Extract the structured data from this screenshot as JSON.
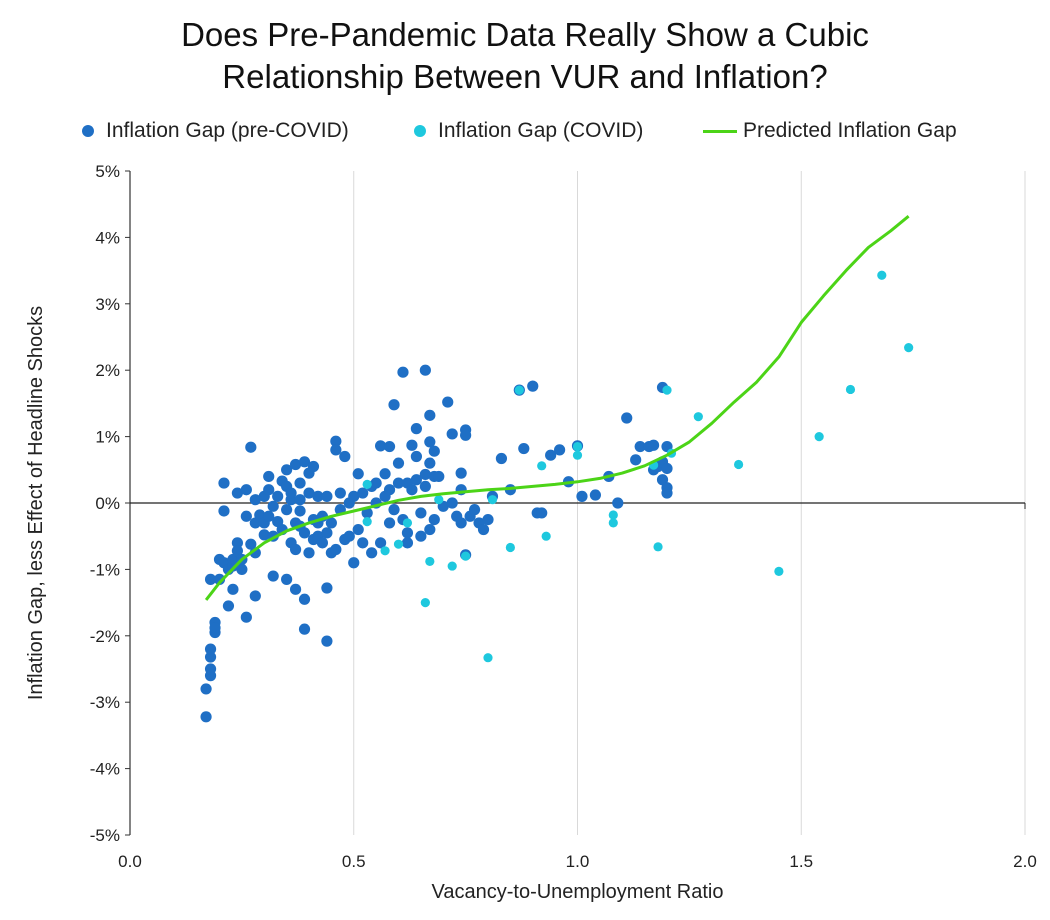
{
  "chart_data": {
    "type": "scatter",
    "title_line1": "Does Pre-Pandemic Data Really Show a Cubic",
    "title_line2": "Relationship Between VUR and Inflation?",
    "xlabel": "Vacancy-to-Unemployment Ratio",
    "ylabel": "Inflation Gap, less Effect of Headline Shocks",
    "xlim": [
      0.0,
      2.0
    ],
    "ylim": [
      -5,
      5
    ],
    "x_ticks": [
      "0.0",
      "0.5",
      "1.0",
      "1.5",
      "2.0"
    ],
    "y_ticks": [
      "5%",
      "4%",
      "3%",
      "2%",
      "1%",
      "0%",
      "-1%",
      "-2%",
      "-3%",
      "-4%",
      "-5%"
    ],
    "legend_position": "top",
    "colors": {
      "pre": "#1f6fc5",
      "covid": "#1ec8de",
      "predicted": "#4cd417"
    },
    "series": [
      {
        "name": "Inflation Gap (pre-COVID)",
        "kind": "scatter",
        "points": [
          [
            0.17,
            -3.22
          ],
          [
            0.17,
            -2.8
          ],
          [
            0.18,
            -2.6
          ],
          [
            0.18,
            -2.5
          ],
          [
            0.18,
            -2.32
          ],
          [
            0.18,
            -2.2
          ],
          [
            0.18,
            -1.15
          ],
          [
            0.19,
            -1.8
          ],
          [
            0.19,
            -1.95
          ],
          [
            0.19,
            -1.88
          ],
          [
            0.2,
            -1.15
          ],
          [
            0.2,
            -0.85
          ],
          [
            0.21,
            -0.9
          ],
          [
            0.21,
            -0.12
          ],
          [
            0.21,
            0.3
          ],
          [
            0.22,
            -1.55
          ],
          [
            0.22,
            -1.0
          ],
          [
            0.23,
            -0.95
          ],
          [
            0.23,
            -0.85
          ],
          [
            0.23,
            -1.3
          ],
          [
            0.24,
            -0.6
          ],
          [
            0.24,
            0.15
          ],
          [
            0.24,
            -0.72
          ],
          [
            0.25,
            -1.0
          ],
          [
            0.25,
            -0.85
          ],
          [
            0.26,
            -1.72
          ],
          [
            0.26,
            -0.2
          ],
          [
            0.26,
            0.2
          ],
          [
            0.27,
            0.84
          ],
          [
            0.27,
            -0.62
          ],
          [
            0.28,
            -1.4
          ],
          [
            0.28,
            -0.75
          ],
          [
            0.28,
            -0.3
          ],
          [
            0.28,
            0.05
          ],
          [
            0.29,
            -0.18
          ],
          [
            0.3,
            -0.48
          ],
          [
            0.3,
            0.1
          ],
          [
            0.3,
            -0.3
          ],
          [
            0.31,
            0.4
          ],
          [
            0.31,
            -0.2
          ],
          [
            0.31,
            0.2
          ],
          [
            0.32,
            -1.1
          ],
          [
            0.32,
            -0.5
          ],
          [
            0.32,
            -0.05
          ],
          [
            0.33,
            0.1
          ],
          [
            0.33,
            -0.28
          ],
          [
            0.34,
            -0.4
          ],
          [
            0.34,
            0.33
          ],
          [
            0.35,
            -1.15
          ],
          [
            0.35,
            -0.1
          ],
          [
            0.35,
            0.5
          ],
          [
            0.35,
            0.25
          ],
          [
            0.36,
            -0.6
          ],
          [
            0.36,
            0.05
          ],
          [
            0.36,
            0.15
          ],
          [
            0.37,
            -1.3
          ],
          [
            0.37,
            -0.3
          ],
          [
            0.37,
            -0.7
          ],
          [
            0.37,
            0.58
          ],
          [
            0.38,
            -0.35
          ],
          [
            0.38,
            0.05
          ],
          [
            0.38,
            -0.12
          ],
          [
            0.38,
            0.3
          ],
          [
            0.39,
            -1.45
          ],
          [
            0.39,
            -1.9
          ],
          [
            0.39,
            0.62
          ],
          [
            0.39,
            -0.45
          ],
          [
            0.4,
            0.15
          ],
          [
            0.4,
            -0.75
          ],
          [
            0.4,
            0.45
          ],
          [
            0.41,
            -0.55
          ],
          [
            0.41,
            -0.25
          ],
          [
            0.41,
            0.55
          ],
          [
            0.42,
            -0.5
          ],
          [
            0.42,
            -0.3
          ],
          [
            0.42,
            0.1
          ],
          [
            0.43,
            -0.2
          ],
          [
            0.43,
            -0.6
          ],
          [
            0.44,
            -2.08
          ],
          [
            0.44,
            -1.28
          ],
          [
            0.44,
            -0.45
          ],
          [
            0.44,
            0.1
          ],
          [
            0.45,
            -0.75
          ],
          [
            0.45,
            -0.3
          ],
          [
            0.46,
            0.93
          ],
          [
            0.46,
            0.8
          ],
          [
            0.46,
            -0.7
          ],
          [
            0.47,
            -0.1
          ],
          [
            0.47,
            0.15
          ],
          [
            0.48,
            -0.55
          ],
          [
            0.48,
            0.7
          ],
          [
            0.49,
            -0.5
          ],
          [
            0.49,
            0.0
          ],
          [
            0.5,
            -0.9
          ],
          [
            0.5,
            0.1
          ],
          [
            0.51,
            0.44
          ],
          [
            0.51,
            -0.4
          ],
          [
            0.52,
            0.15
          ],
          [
            0.52,
            -0.6
          ],
          [
            0.53,
            -0.15
          ],
          [
            0.54,
            0.25
          ],
          [
            0.54,
            -0.75
          ],
          [
            0.55,
            0.0
          ],
          [
            0.55,
            0.3
          ],
          [
            0.56,
            0.86
          ],
          [
            0.56,
            -0.6
          ],
          [
            0.57,
            0.44
          ],
          [
            0.57,
            0.1
          ],
          [
            0.58,
            0.85
          ],
          [
            0.58,
            -0.3
          ],
          [
            0.58,
            0.2
          ],
          [
            0.59,
            1.48
          ],
          [
            0.59,
            -0.1
          ],
          [
            0.6,
            0.6
          ],
          [
            0.6,
            0.3
          ],
          [
            0.61,
            -0.25
          ],
          [
            0.61,
            1.97
          ],
          [
            0.62,
            0.3
          ],
          [
            0.62,
            -0.6
          ],
          [
            0.62,
            -0.45
          ],
          [
            0.63,
            0.87
          ],
          [
            0.63,
            0.2
          ],
          [
            0.64,
            1.12
          ],
          [
            0.64,
            0.7
          ],
          [
            0.64,
            0.35
          ],
          [
            0.65,
            -0.15
          ],
          [
            0.65,
            -0.5
          ],
          [
            0.66,
            0.43
          ],
          [
            0.66,
            2.0
          ],
          [
            0.66,
            0.25
          ],
          [
            0.67,
            0.6
          ],
          [
            0.67,
            -0.4
          ],
          [
            0.67,
            0.92
          ],
          [
            0.67,
            1.32
          ],
          [
            0.68,
            0.4
          ],
          [
            0.68,
            -0.25
          ],
          [
            0.68,
            0.78
          ],
          [
            0.69,
            0.4
          ],
          [
            0.7,
            -0.05
          ],
          [
            0.71,
            1.52
          ],
          [
            0.72,
            1.04
          ],
          [
            0.72,
            0.0
          ],
          [
            0.73,
            -0.2
          ],
          [
            0.74,
            0.45
          ],
          [
            0.74,
            0.2
          ],
          [
            0.74,
            -0.3
          ],
          [
            0.75,
            1.1
          ],
          [
            0.75,
            1.02
          ],
          [
            0.75,
            -0.78
          ],
          [
            0.76,
            -0.2
          ],
          [
            0.77,
            -0.1
          ],
          [
            0.78,
            -0.3
          ],
          [
            0.79,
            -0.4
          ],
          [
            0.8,
            -0.25
          ],
          [
            0.81,
            0.1
          ],
          [
            0.83,
            0.67
          ],
          [
            0.85,
            0.2
          ],
          [
            0.87,
            1.7
          ],
          [
            0.88,
            0.82
          ],
          [
            0.9,
            1.76
          ],
          [
            0.91,
            -0.15
          ],
          [
            0.92,
            -0.15
          ],
          [
            0.94,
            0.72
          ],
          [
            0.96,
            0.8
          ],
          [
            0.98,
            0.32
          ],
          [
            1.0,
            0.86
          ],
          [
            1.01,
            0.1
          ],
          [
            1.04,
            0.12
          ],
          [
            1.07,
            0.4
          ],
          [
            1.09,
            0.0
          ],
          [
            1.11,
            1.28
          ],
          [
            1.13,
            0.65
          ],
          [
            1.14,
            0.85
          ],
          [
            1.16,
            0.85
          ],
          [
            1.17,
            0.87
          ],
          [
            1.17,
            0.5
          ],
          [
            1.18,
            0.55
          ],
          [
            1.19,
            1.74
          ],
          [
            1.19,
            0.35
          ],
          [
            1.19,
            0.62
          ],
          [
            1.2,
            0.85
          ],
          [
            1.2,
            0.52
          ],
          [
            1.2,
            0.23
          ],
          [
            1.2,
            0.15
          ]
        ]
      },
      {
        "name": "Inflation Gap (COVID)",
        "kind": "scatter",
        "points": [
          [
            0.53,
            0.28
          ],
          [
            0.53,
            -0.28
          ],
          [
            0.57,
            -0.72
          ],
          [
            0.6,
            -0.62
          ],
          [
            0.62,
            -0.3
          ],
          [
            0.66,
            -1.5
          ],
          [
            0.67,
            -0.88
          ],
          [
            0.69,
            0.05
          ],
          [
            0.72,
            -0.95
          ],
          [
            0.75,
            -0.8
          ],
          [
            0.8,
            -2.33
          ],
          [
            0.81,
            0.05
          ],
          [
            0.85,
            -0.67
          ],
          [
            0.87,
            1.7
          ],
          [
            0.92,
            0.56
          ],
          [
            0.93,
            -0.5
          ],
          [
            1.0,
            0.85
          ],
          [
            1.0,
            0.72
          ],
          [
            1.08,
            -0.18
          ],
          [
            1.08,
            -0.3
          ],
          [
            1.17,
            0.57
          ],
          [
            1.18,
            -0.66
          ],
          [
            1.2,
            1.7
          ],
          [
            1.21,
            0.75
          ],
          [
            1.27,
            1.3
          ],
          [
            1.36,
            0.58
          ],
          [
            1.45,
            -1.03
          ],
          [
            1.54,
            1.0
          ],
          [
            1.61,
            1.71
          ],
          [
            1.68,
            3.43
          ],
          [
            1.74,
            2.34
          ]
        ]
      },
      {
        "name": "Predicted Inflation Gap",
        "kind": "line",
        "points": [
          [
            0.17,
            -1.46
          ],
          [
            0.2,
            -1.2
          ],
          [
            0.25,
            -0.85
          ],
          [
            0.3,
            -0.6
          ],
          [
            0.35,
            -0.42
          ],
          [
            0.4,
            -0.3
          ],
          [
            0.45,
            -0.2
          ],
          [
            0.5,
            -0.12
          ],
          [
            0.55,
            -0.04
          ],
          [
            0.6,
            0.04
          ],
          [
            0.65,
            0.1
          ],
          [
            0.7,
            0.14
          ],
          [
            0.75,
            0.17
          ],
          [
            0.8,
            0.2
          ],
          [
            0.85,
            0.22
          ],
          [
            0.9,
            0.25
          ],
          [
            0.95,
            0.28
          ],
          [
            1.0,
            0.32
          ],
          [
            1.05,
            0.37
          ],
          [
            1.1,
            0.45
          ],
          [
            1.15,
            0.56
          ],
          [
            1.2,
            0.72
          ],
          [
            1.25,
            0.92
          ],
          [
            1.3,
            1.2
          ],
          [
            1.35,
            1.52
          ],
          [
            1.4,
            1.82
          ],
          [
            1.45,
            2.2
          ],
          [
            1.5,
            2.72
          ],
          [
            1.55,
            3.12
          ],
          [
            1.6,
            3.5
          ],
          [
            1.65,
            3.85
          ],
          [
            1.7,
            4.1
          ],
          [
            1.74,
            4.32
          ]
        ]
      }
    ]
  }
}
